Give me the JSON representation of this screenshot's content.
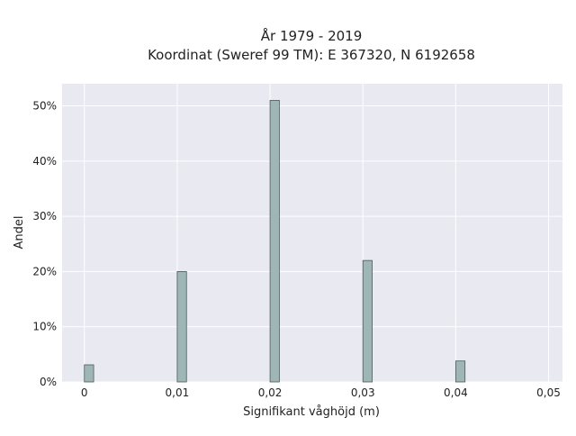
{
  "chart_data": {
    "type": "bar",
    "title_lines": [
      "År 1979 - 2019",
      "Koordinat (Sweref 99 TM): E 367320, N 6192658"
    ],
    "xlabel": "Signifikant våghöjd (m)",
    "ylabel": "Andel",
    "xlim": [
      -0.0024,
      0.0515
    ],
    "ylim": [
      0,
      0.54
    ],
    "x_ticks": [
      0,
      0.01,
      0.02,
      0.03,
      0.04,
      0.05
    ],
    "x_tick_labels": [
      "0",
      "0,01",
      "0,02",
      "0,03",
      "0,04",
      "0,05"
    ],
    "y_ticks": [
      0,
      0.1,
      0.2,
      0.3,
      0.4,
      0.5
    ],
    "y_tick_labels": [
      "0%",
      "10%",
      "20%",
      "30%",
      "40%",
      "50%"
    ],
    "bar_width": 0.001,
    "x": [
      0.0005,
      0.0105,
      0.0205,
      0.0305,
      0.0405
    ],
    "values": [
      0.031,
      0.2,
      0.51,
      0.22,
      0.038
    ],
    "grid": true,
    "colors": {
      "bar_fill": "#9fb6b7",
      "bar_stroke": "#4a5a5a",
      "plot_bg": "#e9e9f1",
      "grid": "#ffffff"
    }
  }
}
